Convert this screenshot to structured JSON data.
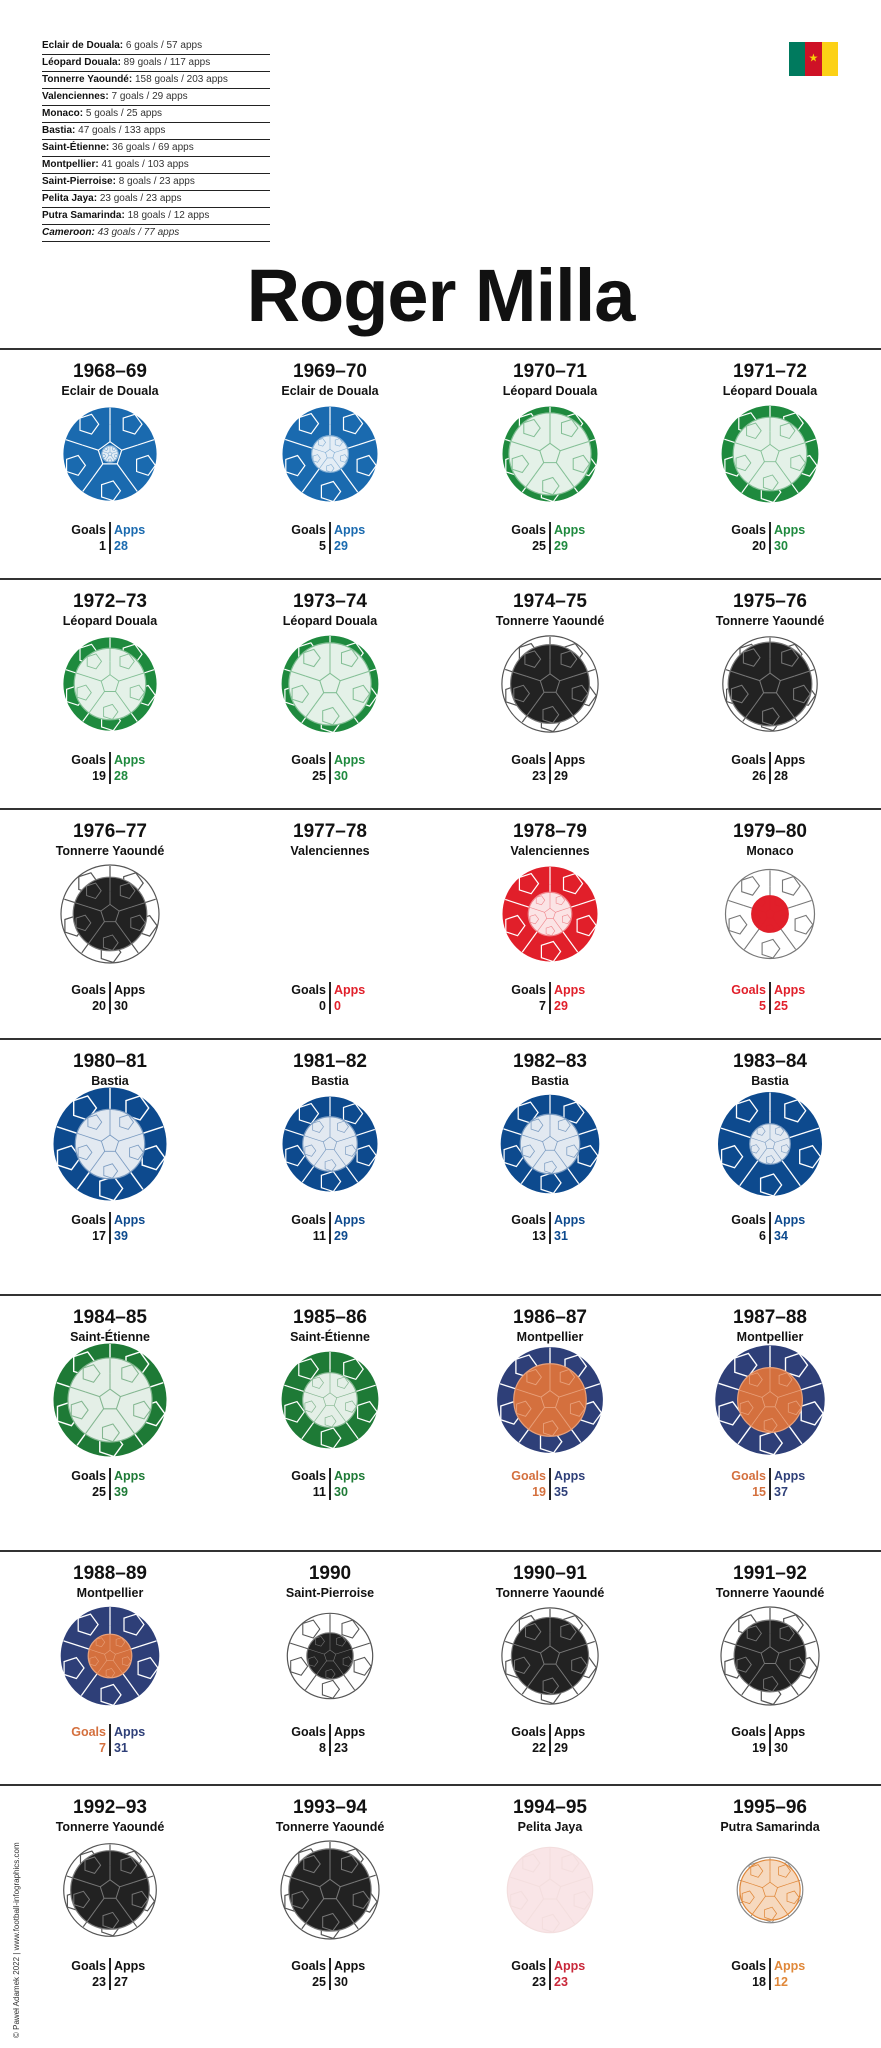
{
  "summary": [
    {
      "club": "Eclair de Douala:",
      "stat": "6 goals / 57 apps"
    },
    {
      "club": "Léopard Douala:",
      "stat": "89 goals / 117 apps"
    },
    {
      "club": "Tonnerre Yaoundé:",
      "stat": "158 goals / 203 apps"
    },
    {
      "club": "Valenciennes:",
      "stat": "7 goals / 29 apps"
    },
    {
      "club": "Monaco:",
      "stat": "5 goals / 25 apps"
    },
    {
      "club": "Bastia:",
      "stat": "47 goals / 133 apps"
    },
    {
      "club": "Saint-Étienne:",
      "stat": "36 goals / 69 apps"
    },
    {
      "club": "Montpellier:",
      "stat": "41 goals / 103 apps"
    },
    {
      "club": "Saint-Pierroise:",
      "stat": "8 goals / 23 apps"
    },
    {
      "club": "Pelita Jaya:",
      "stat": "23 goals / 23 apps"
    },
    {
      "club": "Putra Samarinda:",
      "stat": "18 goals / 12 apps"
    },
    {
      "club": "Cameroon:",
      "stat": "43 goals / 77 apps"
    }
  ],
  "flag": {
    "colors": [
      "#007a5e",
      "#ce1126",
      "#fcd116"
    ],
    "icon": "cameroon-flag-icon"
  },
  "title": "Roger Milla",
  "labels": {
    "goals": "Goals",
    "apps": "Apps"
  },
  "clubColors": {
    "Eclair de Douala": "#1a6aaf",
    "Léopard Douala": "#1e8a3e",
    "Tonnerre Yaoundé": "#222222",
    "Valenciennes": "#e11f2a",
    "Monaco": "#e11f2a",
    "Bastia": "#0d4a8e",
    "Saint-Étienne": "#1e7a36",
    "Montpellier": "#2e3f78",
    "Saint-Pierroise": "#222222",
    "Pelita Jaya": "#c9283a",
    "Putra Samarinda": "#e0883a"
  },
  "goalsColors": {
    "Montpellier": "#d4703e",
    "Monaco": "#e11f2a"
  },
  "seasons": [
    {
      "season": "1968–69",
      "club": "Eclair de Douala",
      "goals": 1,
      "apps": 28
    },
    {
      "season": "1969–70",
      "club": "Eclair de Douala",
      "goals": 5,
      "apps": 29
    },
    {
      "season": "1970–71",
      "club": "Léopard Douala",
      "goals": 25,
      "apps": 29
    },
    {
      "season": "1971–72",
      "club": "Léopard Douala",
      "goals": 20,
      "apps": 30
    },
    {
      "season": "1972–73",
      "club": "Léopard Douala",
      "goals": 19,
      "apps": 28
    },
    {
      "season": "1973–74",
      "club": "Léopard Douala",
      "goals": 25,
      "apps": 30
    },
    {
      "season": "1974–75",
      "club": "Tonnerre Yaoundé",
      "goals": 23,
      "apps": 29
    },
    {
      "season": "1975–76",
      "club": "Tonnerre Yaoundé",
      "goals": 26,
      "apps": 28
    },
    {
      "season": "1976–77",
      "club": "Tonnerre Yaoundé",
      "goals": 20,
      "apps": 30
    },
    {
      "season": "1977–78",
      "club": "Valenciennes",
      "goals": 0,
      "apps": 0
    },
    {
      "season": "1978–79",
      "club": "Valenciennes",
      "goals": 7,
      "apps": 29
    },
    {
      "season": "1979–80",
      "club": "Monaco",
      "goals": 5,
      "apps": 25
    },
    {
      "season": "1980–81",
      "club": "Bastia",
      "goals": 17,
      "apps": 39
    },
    {
      "season": "1981–82",
      "club": "Bastia",
      "goals": 11,
      "apps": 29
    },
    {
      "season": "1982–83",
      "club": "Bastia",
      "goals": 13,
      "apps": 31
    },
    {
      "season": "1983–84",
      "club": "Bastia",
      "goals": 6,
      "apps": 34
    },
    {
      "season": "1984–85",
      "club": "Saint-Étienne",
      "goals": 25,
      "apps": 39
    },
    {
      "season": "1985–86",
      "club": "Saint-Étienne",
      "goals": 11,
      "apps": 30
    },
    {
      "season": "1986–87",
      "club": "Montpellier",
      "goals": 19,
      "apps": 35
    },
    {
      "season": "1987–88",
      "club": "Montpellier",
      "goals": 15,
      "apps": 37
    },
    {
      "season": "1988–89",
      "club": "Montpellier",
      "goals": 7,
      "apps": 31
    },
    {
      "season": "1990",
      "club": "Saint-Pierroise",
      "goals": 8,
      "apps": 23
    },
    {
      "season": "1990–91",
      "club": "Tonnerre Yaoundé",
      "goals": 22,
      "apps": 29
    },
    {
      "season": "1991–92",
      "club": "Tonnerre Yaoundé",
      "goals": 19,
      "apps": 30
    },
    {
      "season": "1992–93",
      "club": "Tonnerre Yaoundé",
      "goals": 23,
      "apps": 27
    },
    {
      "season": "1993–94",
      "club": "Tonnerre Yaoundé",
      "goals": 25,
      "apps": 30
    },
    {
      "season": "1994–95",
      "club": "Pelita Jaya",
      "goals": 23,
      "apps": 23
    },
    {
      "season": "1995–96",
      "club": "Putra Samarinda",
      "goals": 18,
      "apps": 12
    }
  ],
  "credit": "© Paweł Adamek 2022  |  www.football-infographics.com"
}
